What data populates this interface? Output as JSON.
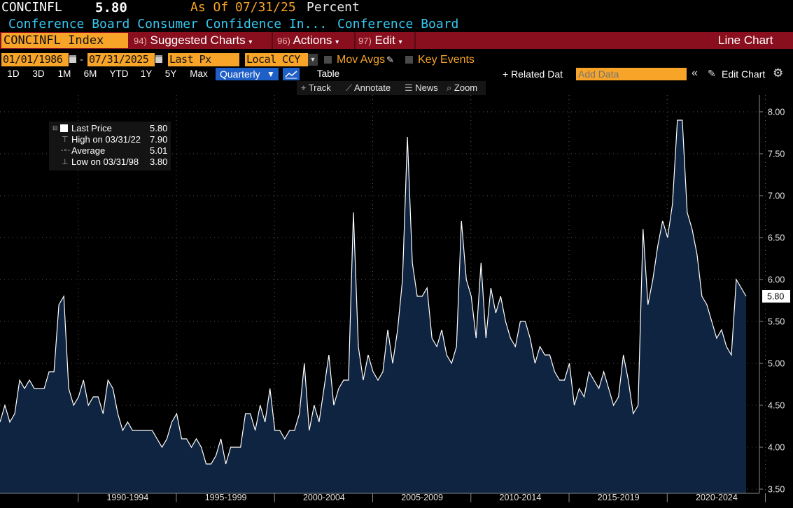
{
  "header": {
    "ticker": "CONCINFL",
    "last": "5.80",
    "as_of_label": "As Of",
    "as_of_date": "07/31/25",
    "units": "Percent",
    "description": "Conference Board Consumer Confidence In...",
    "source": "Conference Board"
  },
  "toolbar": {
    "index_field": "CONCINFL Index",
    "suggested_num": "94)",
    "suggested_label": "Suggested Charts",
    "actions_num": "96)",
    "actions_label": "Actions",
    "edit_num": "97)",
    "edit_label": "Edit",
    "chart_type": "Line Chart"
  },
  "controls": {
    "start_date": "01/01/1986",
    "dash": "-",
    "end_date": "07/31/2025",
    "field": "Last Px",
    "currency": "Local CCY",
    "mov_avgs": "Mov Avgs",
    "key_events": "Key Events",
    "ranges": [
      "1D",
      "3D",
      "1M",
      "6M",
      "YTD",
      "1Y",
      "5Y",
      "Max"
    ],
    "period": "Quarterly",
    "table": "Table",
    "related": "+ Related Dat",
    "add_data_placeholder": "Add Data",
    "edit_chart": "Edit Chart",
    "tools": [
      "Track",
      "Annotate",
      "News",
      "Zoom"
    ]
  },
  "legend": {
    "rows": [
      {
        "label": "Last Price",
        "value": "5.80"
      },
      {
        "label": "High on 03/31/22",
        "value": "7.90"
      },
      {
        "label": "Average",
        "value": "5.01"
      },
      {
        "label": "Low on 03/31/98",
        "value": "3.80"
      }
    ]
  },
  "colors": {
    "toolbar_red": "#8a0f1e",
    "orange": "#f7a428",
    "area_fill": "#0f2440",
    "line": "#ffffff",
    "selected_blue": "#1f5fc8",
    "title_cyan": "#36c8f0"
  },
  "chart_data": {
    "type": "area",
    "title": "",
    "xlabel": "",
    "ylabel": "",
    "ylim": [
      3.45,
      8.2
    ],
    "y_ticks": [
      "3.50",
      "4.00",
      "4.50",
      "5.00",
      "5.50",
      "6.00",
      "6.50",
      "7.00",
      "7.50",
      "8.00"
    ],
    "x_ticks": [
      "1990-1994",
      "1995-1999",
      "2000-2004",
      "2005-2009",
      "2010-2014",
      "2015-2019",
      "2020-2024"
    ],
    "last_value_label": "5.80",
    "frequency": "quarterly",
    "x_start": "1986-Q1",
    "x_end": "2025-Q2",
    "values": [
      4.3,
      4.5,
      4.3,
      4.4,
      4.8,
      4.7,
      4.8,
      4.7,
      4.7,
      4.7,
      4.9,
      4.9,
      5.7,
      5.8,
      4.7,
      4.5,
      4.6,
      4.8,
      4.5,
      4.6,
      4.6,
      4.4,
      4.8,
      4.7,
      4.4,
      4.2,
      4.3,
      4.2,
      4.2,
      4.2,
      4.2,
      4.2,
      4.1,
      4.0,
      4.1,
      4.3,
      4.4,
      4.1,
      4.1,
      4.0,
      4.1,
      4.0,
      3.8,
      3.8,
      3.9,
      4.1,
      3.8,
      4.0,
      4.0,
      4.0,
      4.4,
      4.4,
      4.2,
      4.5,
      4.3,
      4.7,
      4.2,
      4.2,
      4.1,
      4.2,
      4.2,
      4.4,
      5.0,
      4.2,
      4.5,
      4.3,
      4.7,
      5.1,
      4.5,
      4.7,
      4.8,
      4.8,
      6.8,
      5.2,
      4.8,
      5.1,
      4.9,
      4.8,
      4.9,
      5.4,
      5.0,
      5.4,
      6.0,
      7.7,
      6.2,
      5.8,
      5.8,
      5.9,
      5.3,
      5.2,
      5.4,
      5.1,
      5.0,
      5.2,
      6.7,
      6.0,
      5.8,
      5.3,
      6.2,
      5.3,
      5.9,
      5.6,
      5.8,
      5.5,
      5.3,
      5.2,
      5.5,
      5.5,
      5.3,
      5.0,
      5.2,
      5.1,
      5.1,
      4.9,
      4.8,
      4.8,
      5.0,
      4.5,
      4.7,
      4.6,
      4.9,
      4.8,
      4.7,
      4.9,
      4.7,
      4.5,
      4.6,
      5.1,
      4.8,
      4.4,
      4.5,
      6.6,
      5.7,
      6.0,
      6.4,
      6.7,
      6.5,
      6.9,
      7.9,
      7.9,
      6.8,
      6.6,
      6.3,
      5.8,
      5.7,
      5.5,
      5.3,
      5.4,
      5.2,
      5.1,
      6.0,
      5.9,
      5.8
    ]
  }
}
